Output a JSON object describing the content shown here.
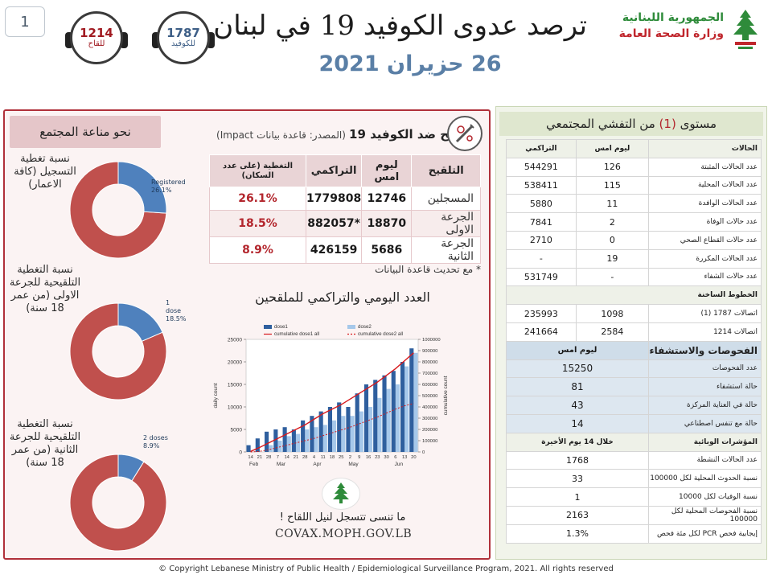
{
  "page_number": "1",
  "hotlines": {
    "vaccine": {
      "number": "1214",
      "caption": "للقاح"
    },
    "covid": {
      "number": "1787",
      "caption": "للكوفيد"
    }
  },
  "title": "ترصد عدوى الكوفيد 19 في لبنان",
  "date": "26 حزيران 2021",
  "logo": {
    "line1": "الجمهورية اللبنانية",
    "line2": "وزارة الصحة العامة"
  },
  "colors": {
    "accent_red": "#b3262d",
    "donut_red": "#c0504d",
    "donut_blue": "#4f81bd",
    "title_blue": "#5a7fa6"
  },
  "immunity": {
    "header": "نحو مناعة المجتمع",
    "donuts": [
      {
        "label": "نسبة تغطية التسجيل (كافة الاعمار)",
        "slice_name": "Registered",
        "slice_pct_text": "26.1%",
        "fraction": 0.261
      },
      {
        "label": "نسبة التغطية التلقيحية للجرعة الاولى (من عمر 18 سنة)",
        "slice_name": "1 dose",
        "slice_pct_text": "18.5%",
        "fraction": 0.185
      },
      {
        "label": "نسبة التغطية التلقيحية للجرعة الثانية (من عمر 18 سنة)",
        "slice_name": "2 doses",
        "slice_pct_text": "8.9%",
        "fraction": 0.089
      }
    ]
  },
  "vaccination": {
    "title_bold": "التلقيح ضد الكوفيد 19",
    "title_source": "(المصدر: قاعدة بيانات Impact)",
    "icon": "vaccine-virus-icon",
    "headers": {
      "name": "التلقيح",
      "daily": "ليوم امس",
      "cumulative": "التراكمي",
      "coverage": "التغطية (على عدد السكان)"
    },
    "rows": [
      {
        "name": "المسجلين",
        "daily": "12746",
        "cumulative": "1779808",
        "coverage": "26.1%"
      },
      {
        "name": "الجرعة الاولى",
        "daily": "18870",
        "cumulative": "*882057",
        "coverage": "18.5%"
      },
      {
        "name": "الجرعة الثانية",
        "daily": "5686",
        "cumulative": "426159",
        "coverage": "8.9%"
      }
    ],
    "note": "* مع تحديث قاعدة البيانات"
  },
  "chart_title": "العدد اليومي والتراكمي للملقحين",
  "chart_data": {
    "type": "bar",
    "legend": [
      "dose1",
      "dose2",
      "cumulative dose1 all",
      "cumulative dose2 all"
    ],
    "ylabel": "daily count",
    "y2label": "cumulative count",
    "ylim": [
      0,
      25000
    ],
    "y2lim": [
      0,
      1000000
    ],
    "yticks": [
      0,
      5000,
      10000,
      15000,
      20000,
      25000
    ],
    "y2ticks": [
      0,
      100000,
      200000,
      300000,
      400000,
      500000,
      600000,
      700000,
      800000,
      900000,
      1000000
    ],
    "xticks": [
      "14",
      "21",
      "28",
      "7",
      "14",
      "21",
      "28",
      "4",
      "11",
      "18",
      "25",
      "2",
      "9",
      "16",
      "23",
      "30",
      "6",
      "13",
      "20"
    ],
    "months": [
      "Feb",
      "Mar",
      "Apr",
      "May",
      "Jun"
    ],
    "dose1_weekly": [
      1500,
      3000,
      4500,
      5000,
      5500,
      5000,
      7000,
      8000,
      9000,
      10000,
      11000,
      10000,
      13000,
      15000,
      16000,
      17000,
      18000,
      20000,
      23000
    ],
    "dose2_weekly": [
      0,
      0,
      1500,
      2500,
      3500,
      4000,
      5000,
      5500,
      6000,
      7000,
      8000,
      8000,
      9000,
      10000,
      12000,
      14000,
      15000,
      19000,
      22000
    ],
    "cumulative_dose1": [
      5000,
      40000,
      80000,
      120000,
      160000,
      200000,
      240000,
      290000,
      340000,
      380000,
      420000,
      470000,
      520000,
      570000,
      620000,
      680000,
      740000,
      810000,
      880000
    ],
    "cumulative_dose2": [
      0,
      5000,
      20000,
      40000,
      60000,
      80000,
      100000,
      120000,
      145000,
      170000,
      195000,
      220000,
      250000,
      280000,
      310000,
      345000,
      380000,
      410000,
      430000
    ]
  },
  "covax": {
    "message": "ما تنسى تتسجل لنيل اللقاح !",
    "url": "COVAX.MOPH.GOV.LB",
    "icon": "cedar-icon"
  },
  "community": {
    "level_prefix": "مستوى",
    "level_value": "(1)",
    "level_suffix": "من التفشي المجتمعي",
    "cases_header": {
      "label": "الحالات",
      "daily": "ليوم امس",
      "cumulative": "التراكمي"
    },
    "cases": [
      {
        "label": "عدد الحالات المثبتة",
        "daily": "126",
        "cumulative": "544291"
      },
      {
        "label": "عدد الحالات المحلية",
        "daily": "115",
        "cumulative": "538411"
      },
      {
        "label": "عدد الحالات الوافدة",
        "daily": "11",
        "cumulative": "5880"
      },
      {
        "label": "عدد حالات الوفاة",
        "daily": "2",
        "cumulative": "7841"
      },
      {
        "label": "عدد حالات القطاع الصحي",
        "daily": "0",
        "cumulative": "2710"
      },
      {
        "label": "عدد الحالات المكررة",
        "daily": "19",
        "cumulative": "-"
      },
      {
        "label": "عدد حالات الشفاء",
        "daily": "-",
        "cumulative": "531749"
      }
    ],
    "hotlines_header": "الخطوط الساخنة",
    "hotlines": [
      {
        "label": "اتصالات 1787 (1)",
        "daily": "1098",
        "cumulative": "235993"
      },
      {
        "label": "اتصالات 1214",
        "daily": "2584",
        "cumulative": "241664"
      }
    ],
    "tests_header": {
      "label": "الفحوصات والاستشفاء",
      "daily": "ليوم امس"
    },
    "tests": [
      {
        "label": "عدد الفحوصات",
        "value": "15250"
      },
      {
        "label": "حالة استشفاء",
        "value": "81"
      },
      {
        "label": "حالة في العناية المركزة",
        "value": "43"
      },
      {
        "label": "حالة مع تنفس اصطناعي",
        "value": "14"
      }
    ],
    "indicators_header": {
      "label": "المؤشرات الوبائية",
      "period": "خلال 14 يوم الأخيرة"
    },
    "indicators": [
      {
        "label": "عدد الحالات النشطة",
        "value": "1768"
      },
      {
        "label": "نسبة الحدوث المحلية لكل 100000",
        "value": "33"
      },
      {
        "label": "نسبة الوفيات لكل 10000",
        "value": "1"
      },
      {
        "label": "نسبة الفحوصات المحلية لكل 100000",
        "value": "2163"
      },
      {
        "label": "إيجابية فحص PCR لكل مئة فحص",
        "value": "1.3%"
      }
    ]
  },
  "footer": "© Copyright Lebanese Ministry of Public Health / Epidemiological Surveillance Program, 2021. All rights reserved"
}
